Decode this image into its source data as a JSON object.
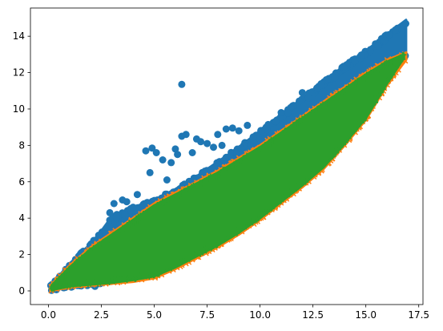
{
  "chart_data": {
    "type": "scatter",
    "title": "",
    "xlabel": "",
    "ylabel": "",
    "xlim": [
      -0.85,
      17.7
    ],
    "ylim": [
      -0.75,
      15.55
    ],
    "xticks": [
      0.0,
      2.5,
      5.0,
      7.5,
      10.0,
      12.5,
      15.0,
      17.5
    ],
    "xtick_labels": [
      "0.0",
      "2.5",
      "5.0",
      "7.5",
      "10.0",
      "12.5",
      "15.0",
      "17.5"
    ],
    "yticks": [
      0,
      2,
      4,
      6,
      8,
      10,
      12,
      14
    ],
    "ytick_labels": [
      "0",
      "2",
      "4",
      "6",
      "8",
      "10",
      "12",
      "14"
    ],
    "grid": false,
    "legend": "none",
    "series": [
      {
        "marker": "circle",
        "color": "#1f77b4",
        "band": {
          "x": [
            0.1,
            1.0,
            2.0,
            2.5,
            3.0,
            4.0,
            5.0,
            6.0,
            7.0,
            8.0,
            9.0,
            10.0,
            11.0,
            12.0,
            13.0,
            14.0,
            15.0,
            16.0,
            16.9
          ],
          "upper": [
            0.3,
            1.5,
            2.6,
            3.3,
            4.1,
            4.6,
            5.0,
            5.6,
            6.3,
            7.1,
            7.9,
            8.8,
            9.7,
            10.6,
            11.5,
            12.4,
            13.2,
            14.1,
            14.9
          ],
          "lower": [
            0.0,
            0.2,
            0.3,
            0.4,
            0.5,
            0.8,
            1.2,
            1.7,
            2.3,
            3.0,
            3.8,
            4.7,
            5.6,
            6.6,
            7.7,
            8.9,
            10.3,
            11.6,
            12.9
          ]
        },
        "outliers": [
          {
            "x": 6.3,
            "y": 11.35
          },
          {
            "x": 4.6,
            "y": 7.7
          },
          {
            "x": 4.9,
            "y": 7.85
          },
          {
            "x": 5.1,
            "y": 7.6
          },
          {
            "x": 4.8,
            "y": 6.5
          },
          {
            "x": 5.8,
            "y": 7.05
          },
          {
            "x": 6.0,
            "y": 7.8
          },
          {
            "x": 6.3,
            "y": 8.5
          },
          {
            "x": 6.5,
            "y": 8.6
          },
          {
            "x": 6.1,
            "y": 7.5
          },
          {
            "x": 7.2,
            "y": 8.2
          },
          {
            "x": 7.5,
            "y": 8.1
          },
          {
            "x": 8.0,
            "y": 8.6
          },
          {
            "x": 8.4,
            "y": 8.9
          },
          {
            "x": 8.7,
            "y": 8.95
          },
          {
            "x": 9.0,
            "y": 8.8
          },
          {
            "x": 9.4,
            "y": 9.1
          },
          {
            "x": 3.1,
            "y": 4.8
          },
          {
            "x": 3.5,
            "y": 5.0
          },
          {
            "x": 3.7,
            "y": 4.9
          },
          {
            "x": 4.0,
            "y": 4.6
          },
          {
            "x": 4.2,
            "y": 5.3
          },
          {
            "x": 2.9,
            "y": 4.3
          },
          {
            "x": 5.4,
            "y": 7.2
          },
          {
            "x": 5.6,
            "y": 6.1
          },
          {
            "x": 8.2,
            "y": 8.0
          },
          {
            "x": 7.8,
            "y": 7.9
          },
          {
            "x": 6.8,
            "y": 7.6
          },
          {
            "x": 7.0,
            "y": 8.35
          },
          {
            "x": 2.2,
            "y": 0.25
          },
          {
            "x": 11.0,
            "y": 9.8
          },
          {
            "x": 12.0,
            "y": 10.9
          }
        ]
      },
      {
        "marker": "x",
        "color": "#ff7f0e",
        "band": {
          "x": [
            0.1,
            1.0,
            2.0,
            3.0,
            4.0,
            5.0,
            6.0,
            7.0,
            8.0,
            9.0,
            10.0,
            11.0,
            12.0,
            13.0,
            14.0,
            15.0,
            16.0,
            16.9
          ],
          "upper": [
            0.3,
            1.4,
            2.4,
            3.2,
            4.0,
            4.8,
            5.4,
            6.0,
            6.6,
            7.3,
            8.0,
            8.8,
            9.6,
            10.4,
            11.2,
            12.0,
            12.7,
            13.1
          ],
          "lower": [
            0.0,
            0.2,
            0.3,
            0.4,
            0.5,
            0.7,
            1.2,
            1.8,
            2.4,
            3.1,
            3.9,
            4.8,
            5.7,
            6.7,
            8.0,
            9.4,
            11.3,
            12.7
          ]
        },
        "outliers": []
      },
      {
        "marker": "+",
        "color": "#2ca02c",
        "band": {
          "x": [
            0.15,
            1.0,
            2.0,
            3.0,
            4.0,
            5.0,
            6.0,
            7.0,
            8.0,
            9.0,
            10.0,
            11.0,
            12.0,
            13.0,
            14.0,
            15.0,
            16.0,
            16.8
          ],
          "upper": [
            0.3,
            1.3,
            2.3,
            3.1,
            3.9,
            4.7,
            5.3,
            5.9,
            6.5,
            7.2,
            7.9,
            8.7,
            9.5,
            10.3,
            11.1,
            11.9,
            12.6,
            13.0
          ],
          "lower": [
            0.05,
            0.25,
            0.35,
            0.45,
            0.6,
            0.8,
            1.3,
            1.9,
            2.5,
            3.2,
            4.0,
            4.9,
            5.8,
            6.8,
            8.1,
            9.5,
            11.4,
            12.8
          ]
        },
        "outliers": []
      }
    ]
  }
}
